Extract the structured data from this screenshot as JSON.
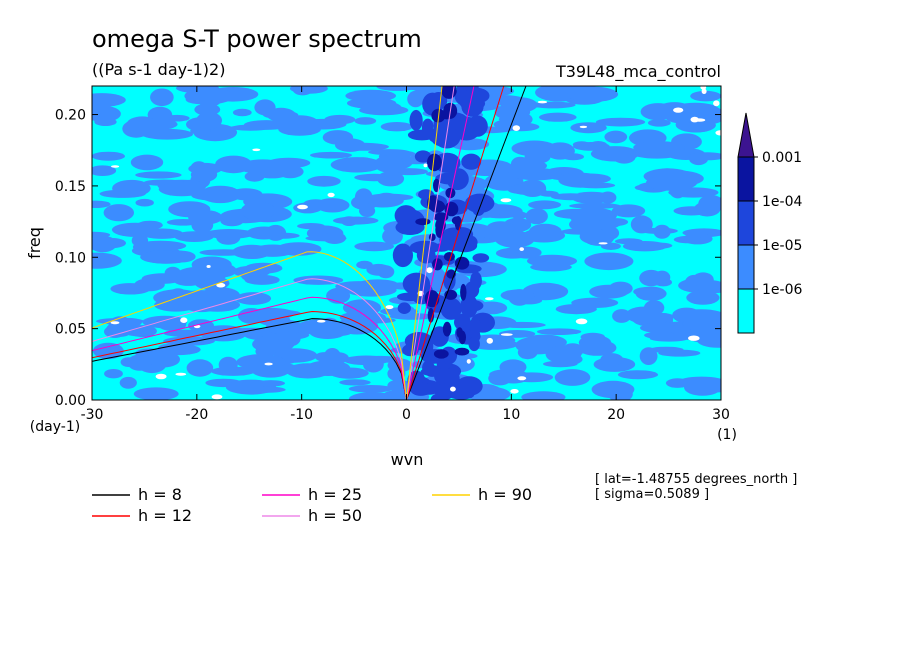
{
  "chart_data": {
    "type": "heatmap",
    "title": "omega S-T power spectrum",
    "subtitle": "((Pa s-1 day-1)2)",
    "run_label": "T39L48_mca_control",
    "xlabel": "wvn",
    "ylabel": "freq",
    "x_unit": "(1)",
    "y_unit": "(day-1)",
    "xlim": [
      -30,
      30
    ],
    "ylim": [
      0,
      0.22
    ],
    "xticks": [
      "-30",
      "-20",
      "-10",
      "0",
      "10",
      "20",
      "30"
    ],
    "xtick_values": [
      -30,
      -20,
      -10,
      0,
      10,
      20,
      30
    ],
    "yticks": [
      "0.00",
      "0.05",
      "0.10",
      "0.15",
      "0.20"
    ],
    "ytick_values": [
      0,
      0.05,
      0.1,
      0.15,
      0.2
    ],
    "colorbar": {
      "levels": [
        "1e-06",
        "1e-05",
        "1e-04",
        "0.001"
      ],
      "colors": [
        "#00ffff",
        "#3c8cff",
        "#1e46dc",
        "#0a14a0",
        "#3c1490"
      ]
    },
    "dispersion_curves": [
      {
        "label": "h = 8",
        "color": "#000000",
        "kelvin_slope": 0.0193,
        "mrg_peak": 0.057
      },
      {
        "label": "h = 12",
        "color": "#ff0000",
        "kelvin_slope": 0.0237,
        "mrg_peak": 0.062
      },
      {
        "label": "h = 25",
        "color": "#ff00c8",
        "kelvin_slope": 0.0342,
        "mrg_peak": 0.072
      },
      {
        "label": "h = 50",
        "color": "#ee88e8",
        "kelvin_slope": 0.0484,
        "mrg_peak": 0.085
      },
      {
        "label": "h = 90",
        "color": "#ffd200",
        "kelvin_slope": 0.0649,
        "mrg_peak": 0.104
      }
    ],
    "annotations": [
      "[ lat=-1.48755 degrees_north ]",
      "[ sigma=0.5089 ]"
    ]
  }
}
